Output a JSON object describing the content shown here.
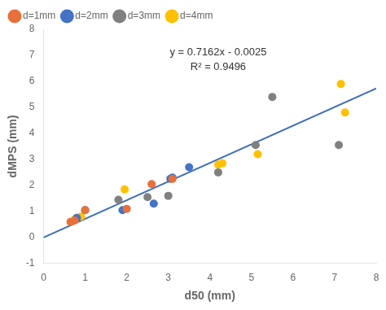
{
  "chart_data": {
    "type": "scatter",
    "xlabel": "d50 (mm)",
    "ylabel": "dMPS (mm)",
    "series": [
      {
        "name": "d=1mm",
        "color": "#E8703A",
        "x": [
          0.65,
          0.75,
          1.0,
          2.0,
          2.6,
          3.1
        ],
        "y": [
          0.6,
          0.65,
          1.05,
          1.1,
          2.05,
          2.25
        ]
      },
      {
        "name": "d=2mm",
        "color": "#4472C4",
        "x": [
          0.8,
          1.0,
          1.9,
          2.65,
          3.05,
          3.1,
          3.5
        ],
        "y": [
          0.75,
          1.05,
          1.05,
          1.3,
          2.25,
          2.3,
          2.7
        ]
      },
      {
        "name": "d=3mm",
        "color": "#808080",
        "x": [
          1.8,
          2.5,
          3.0,
          4.2,
          5.1,
          5.5,
          7.1
        ],
        "y": [
          1.45,
          1.55,
          1.6,
          2.5,
          3.55,
          5.4,
          3.55
        ]
      },
      {
        "name": "d=4mm",
        "color": "#FFC000",
        "x": [
          0.75,
          0.9,
          1.95,
          4.2,
          4.3,
          5.15,
          7.15,
          7.25
        ],
        "y": [
          0.7,
          0.8,
          1.85,
          2.8,
          2.85,
          3.2,
          5.9,
          4.8
        ]
      },
      {
        "type": "line",
        "color": "#3D6DB5",
        "x": [
          0.0,
          8.0
        ],
        "y": [
          -0.0025,
          5.7271
        ]
      }
    ],
    "annotations": [
      {
        "text": "y = 0.7162x - 0.0025",
        "x": 4.2,
        "y": 7.3
      },
      {
        "text": "R² = 0.9496",
        "x": 4.2,
        "y": 6.75
      }
    ],
    "xlim": [
      0,
      8
    ],
    "ylim": [
      -1,
      8
    ],
    "xticks": [
      0,
      1,
      2,
      3,
      4,
      5,
      6,
      7,
      8
    ],
    "yticks": [
      -1,
      0,
      1,
      2,
      3,
      4,
      5,
      6,
      7,
      8
    ],
    "grid": false,
    "legend": "upper left"
  }
}
